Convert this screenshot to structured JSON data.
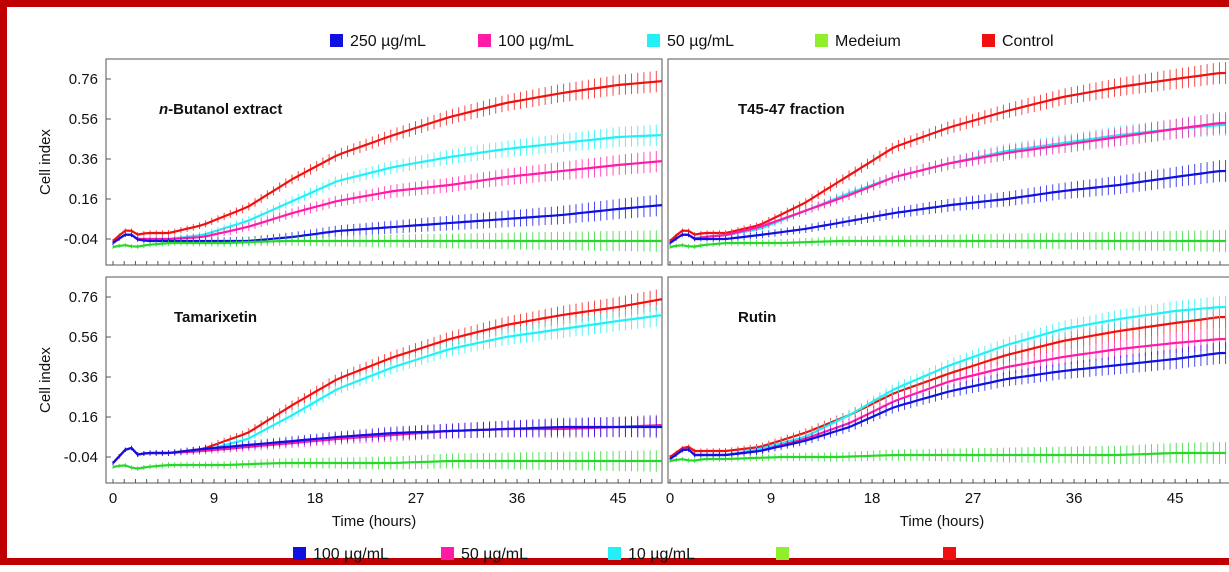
{
  "legend_top": [
    {
      "label": "250 µg/mL",
      "color": "#1010e0"
    },
    {
      "label": "100 µg/mL",
      "color": "#ff1aa8"
    },
    {
      "label": "50 µg/mL",
      "color": "#22f0f6"
    },
    {
      "label": "Medeium",
      "color": "#8ef02c"
    },
    {
      "label": "Control",
      "color": "#f01010"
    }
  ],
  "legend_bottom": [
    {
      "label": "100 µg/mL",
      "color": "#1010e0"
    },
    {
      "label": "50 µg/mL",
      "color": "#ff1aa8"
    },
    {
      "label": "10 µg/mL",
      "color": "#22f0f6"
    },
    {
      "label": "",
      "color": "#8ef02c"
    },
    {
      "label": "",
      "color": "#f01010"
    }
  ],
  "chart_data": [
    {
      "type": "line",
      "title_prefix": "n",
      "title": "-Butanol extract",
      "xlabel": "",
      "ylabel": "Cell index",
      "xlim": [
        0,
        50
      ],
      "ylim": [
        -0.1,
        0.8
      ],
      "xticks": [],
      "yticks": [
        "0.76",
        "0.56",
        "0.36",
        "0.16",
        "-0.04"
      ],
      "series": [
        {
          "name": "Control",
          "color": "#f01010",
          "x": [
            0,
            1,
            1.5,
            2,
            3,
            5,
            8,
            12,
            16,
            20,
            25,
            30,
            35,
            40,
            45,
            49
          ],
          "y": [
            -0.05,
            0.0,
            0.01,
            -0.02,
            -0.01,
            -0.01,
            0.03,
            0.12,
            0.26,
            0.38,
            0.48,
            0.57,
            0.64,
            0.69,
            0.73,
            0.75
          ]
        },
        {
          "name": "",
          "color": "#22f0f6",
          "x": [
            0,
            1,
            1.5,
            2,
            3,
            5,
            8,
            12,
            16,
            20,
            25,
            30,
            35,
            40,
            45,
            49
          ],
          "y": [
            -0.06,
            -0.02,
            -0.01,
            -0.04,
            -0.04,
            -0.04,
            -0.02,
            0.05,
            0.15,
            0.25,
            0.32,
            0.37,
            0.41,
            0.44,
            0.47,
            0.48
          ]
        },
        {
          "name": "",
          "color": "#ff1aa8",
          "x": [
            0,
            1,
            1.5,
            2,
            3,
            5,
            8,
            12,
            16,
            20,
            25,
            30,
            35,
            40,
            45,
            49
          ],
          "y": [
            -0.06,
            -0.02,
            -0.01,
            -0.04,
            -0.04,
            -0.04,
            -0.03,
            0.02,
            0.09,
            0.15,
            0.2,
            0.23,
            0.27,
            0.3,
            0.33,
            0.35
          ]
        },
        {
          "name": "",
          "color": "#1010e0",
          "x": [
            0,
            1,
            1.5,
            2,
            3,
            5,
            8,
            12,
            16,
            20,
            25,
            30,
            35,
            40,
            45,
            49
          ],
          "y": [
            -0.06,
            -0.02,
            -0.01,
            -0.04,
            -0.05,
            -0.05,
            -0.05,
            -0.05,
            -0.03,
            0.0,
            0.02,
            0.04,
            0.06,
            0.08,
            0.11,
            0.13
          ]
        },
        {
          "name": "",
          "color": "#27d82a",
          "x": [
            0,
            1,
            2,
            3,
            5,
            10,
            15,
            20,
            25,
            30,
            35,
            40,
            45,
            49
          ],
          "y": [
            -0.08,
            -0.07,
            -0.08,
            -0.07,
            -0.06,
            -0.06,
            -0.05,
            -0.05,
            -0.05,
            -0.05,
            -0.05,
            -0.05,
            -0.05,
            -0.05
          ]
        }
      ]
    },
    {
      "type": "line",
      "title_prefix": "",
      "title": "T45-47 fraction",
      "xlabel": "",
      "ylabel": "",
      "xlim": [
        0,
        50
      ],
      "ylim": [
        -0.1,
        0.8
      ],
      "xticks": [],
      "yticks": [],
      "series": [
        {
          "name": "",
          "color": "#f01010",
          "x": [
            0,
            1,
            1.5,
            2,
            3,
            5,
            8,
            12,
            16,
            20,
            25,
            30,
            35,
            40,
            45,
            49
          ],
          "y": [
            -0.05,
            0.0,
            0.01,
            -0.02,
            -0.01,
            -0.01,
            0.03,
            0.14,
            0.28,
            0.42,
            0.52,
            0.6,
            0.67,
            0.72,
            0.76,
            0.79
          ]
        },
        {
          "name": "",
          "color": "#22f0f6",
          "x": [
            0,
            1,
            1.5,
            2,
            3,
            5,
            8,
            12,
            16,
            20,
            25,
            30,
            35,
            40,
            45,
            49
          ],
          "y": [
            -0.06,
            -0.02,
            -0.01,
            -0.04,
            -0.03,
            -0.02,
            0.01,
            0.1,
            0.19,
            0.27,
            0.34,
            0.4,
            0.44,
            0.48,
            0.51,
            0.53
          ]
        },
        {
          "name": "",
          "color": "#ff1aa8",
          "x": [
            0,
            1,
            1.5,
            2,
            3,
            5,
            8,
            12,
            16,
            20,
            25,
            30,
            35,
            40,
            45,
            49
          ],
          "y": [
            -0.06,
            -0.02,
            -0.01,
            -0.04,
            -0.03,
            -0.02,
            0.02,
            0.1,
            0.18,
            0.27,
            0.34,
            0.39,
            0.43,
            0.47,
            0.51,
            0.54
          ]
        },
        {
          "name": "",
          "color": "#1010e0",
          "x": [
            0,
            1,
            1.5,
            2,
            3,
            5,
            8,
            12,
            16,
            20,
            25,
            30,
            35,
            40,
            45,
            49
          ],
          "y": [
            -0.06,
            -0.02,
            -0.01,
            -0.04,
            -0.04,
            -0.04,
            -0.02,
            0.01,
            0.05,
            0.09,
            0.13,
            0.16,
            0.2,
            0.23,
            0.27,
            0.3
          ]
        },
        {
          "name": "",
          "color": "#27d82a",
          "x": [
            0,
            1,
            2,
            3,
            5,
            10,
            15,
            20,
            25,
            30,
            35,
            40,
            45,
            49
          ],
          "y": [
            -0.08,
            -0.07,
            -0.08,
            -0.07,
            -0.06,
            -0.06,
            -0.05,
            -0.05,
            -0.05,
            -0.05,
            -0.05,
            -0.05,
            -0.05,
            -0.05
          ]
        }
      ]
    },
    {
      "type": "line",
      "title_prefix": "",
      "title": "Tamarixetin",
      "xlabel": "Time (hours)",
      "ylabel": "Cell index",
      "xlim": [
        0,
        50
      ],
      "ylim": [
        -0.1,
        0.8
      ],
      "xticks": [
        "0",
        "9",
        "18",
        "27",
        "36",
        "45"
      ],
      "yticks": [
        "0.76",
        "0.56",
        "0.36",
        "0.16",
        "-0.04"
      ],
      "series": [
        {
          "name": "",
          "color": "#f01010",
          "x": [
            0,
            1,
            1.5,
            2,
            3,
            5,
            8,
            12,
            16,
            20,
            25,
            30,
            35,
            40,
            45,
            49
          ],
          "y": [
            -0.07,
            -0.01,
            0.02,
            -0.03,
            -0.02,
            -0.02,
            0.0,
            0.08,
            0.22,
            0.35,
            0.46,
            0.55,
            0.62,
            0.67,
            0.71,
            0.75
          ]
        },
        {
          "name": "",
          "color": "#22f0f6",
          "x": [
            0,
            1,
            1.5,
            2,
            3,
            5,
            8,
            12,
            16,
            20,
            25,
            30,
            35,
            40,
            45,
            49
          ],
          "y": [
            -0.07,
            -0.01,
            0.02,
            -0.03,
            -0.02,
            -0.02,
            -0.01,
            0.05,
            0.17,
            0.3,
            0.41,
            0.5,
            0.56,
            0.6,
            0.64,
            0.67
          ]
        },
        {
          "name": "",
          "color": "#ff1aa8",
          "x": [
            0,
            1,
            1.5,
            2,
            3,
            5,
            8,
            12,
            16,
            20,
            25,
            30,
            35,
            40,
            45,
            49
          ],
          "y": [
            -0.07,
            -0.01,
            0.02,
            -0.03,
            -0.02,
            -0.02,
            -0.01,
            0.01,
            0.03,
            0.05,
            0.07,
            0.09,
            0.1,
            0.1,
            0.11,
            0.12
          ]
        },
        {
          "name": "",
          "color": "#1010e0",
          "x": [
            0,
            1,
            1.5,
            2,
            3,
            5,
            8,
            12,
            16,
            20,
            25,
            30,
            35,
            40,
            45,
            49
          ],
          "y": [
            -0.07,
            -0.01,
            0.02,
            -0.03,
            -0.02,
            -0.02,
            0.0,
            0.02,
            0.04,
            0.06,
            0.08,
            0.09,
            0.1,
            0.11,
            0.11,
            0.11
          ]
        },
        {
          "name": "",
          "color": "#27d82a",
          "x": [
            0,
            1,
            2,
            3,
            5,
            10,
            15,
            20,
            25,
            30,
            35,
            40,
            45,
            49
          ],
          "y": [
            -0.09,
            -0.08,
            -0.1,
            -0.09,
            -0.08,
            -0.08,
            -0.07,
            -0.07,
            -0.07,
            -0.06,
            -0.06,
            -0.06,
            -0.06,
            -0.06
          ]
        }
      ]
    },
    {
      "type": "line",
      "title_prefix": "",
      "title": "Rutin",
      "xlabel": "Time (hours)",
      "ylabel": "",
      "xlim": [
        0,
        50
      ],
      "ylim": [
        -0.1,
        0.8
      ],
      "xticks": [
        "0",
        "9",
        "18",
        "27",
        "36",
        "45"
      ],
      "yticks": [],
      "series": [
        {
          "name": "",
          "color": "#f01010",
          "x": [
            0,
            1,
            1.5,
            2,
            3,
            5,
            8,
            12,
            16,
            20,
            25,
            30,
            35,
            40,
            45,
            49
          ],
          "y": [
            -0.04,
            0.0,
            0.02,
            -0.01,
            -0.01,
            -0.01,
            0.01,
            0.08,
            0.17,
            0.28,
            0.38,
            0.47,
            0.54,
            0.59,
            0.63,
            0.66
          ]
        },
        {
          "name": "",
          "color": "#22f0f6",
          "x": [
            0,
            1,
            1.5,
            2,
            3,
            5,
            8,
            12,
            16,
            20,
            25,
            30,
            35,
            40,
            45,
            49
          ],
          "y": [
            -0.05,
            -0.01,
            0.01,
            -0.03,
            -0.03,
            -0.03,
            0.0,
            0.06,
            0.17,
            0.3,
            0.42,
            0.52,
            0.6,
            0.65,
            0.69,
            0.71
          ]
        },
        {
          "name": "",
          "color": "#ff1aa8",
          "x": [
            0,
            1,
            1.5,
            2,
            3,
            5,
            8,
            12,
            16,
            20,
            25,
            30,
            35,
            40,
            45,
            49
          ],
          "y": [
            -0.05,
            -0.01,
            0.01,
            -0.03,
            -0.03,
            -0.03,
            -0.01,
            0.05,
            0.13,
            0.24,
            0.34,
            0.41,
            0.46,
            0.5,
            0.53,
            0.55
          ]
        },
        {
          "name": "",
          "color": "#1010e0",
          "x": [
            0,
            1,
            1.5,
            2,
            3,
            5,
            8,
            12,
            16,
            20,
            25,
            30,
            35,
            40,
            45,
            49
          ],
          "y": [
            -0.05,
            -0.01,
            0.01,
            -0.03,
            -0.03,
            -0.03,
            -0.01,
            0.04,
            0.11,
            0.21,
            0.29,
            0.35,
            0.39,
            0.42,
            0.45,
            0.48
          ]
        },
        {
          "name": "",
          "color": "#27d82a",
          "x": [
            0,
            1,
            2,
            3,
            5,
            10,
            15,
            20,
            25,
            30,
            35,
            40,
            45,
            49
          ],
          "y": [
            -0.06,
            -0.05,
            -0.06,
            -0.05,
            -0.05,
            -0.04,
            -0.04,
            -0.03,
            -0.03,
            -0.03,
            -0.03,
            -0.03,
            -0.02,
            -0.02
          ]
        }
      ]
    }
  ]
}
